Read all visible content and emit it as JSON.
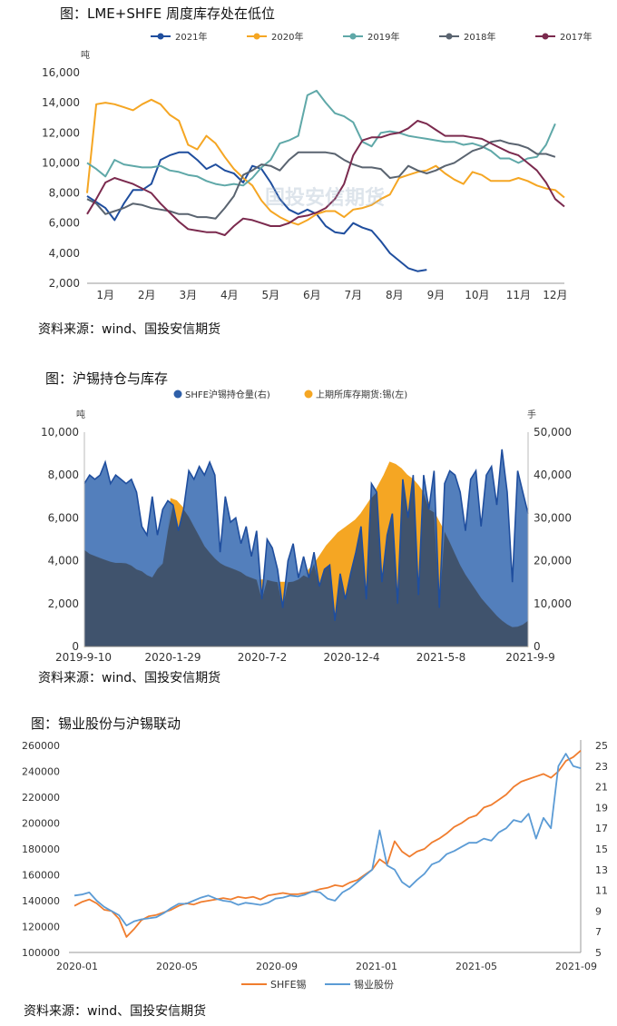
{
  "charts": [
    {
      "figure_title": "图：LME+SHFE 周度库存处在低位",
      "source": "资料来源：wind、国投安信期货"
    },
    {
      "figure_title": "图：沪锡持仓与库存",
      "source": "资料来源：wind、国投安信期货"
    },
    {
      "figure_title": "图：锡业股份与沪锡联动",
      "source": "资料来源：wind、国投安信期货"
    }
  ],
  "watermark": "国投安信期货",
  "chart_data": [
    {
      "type": "line",
      "title": "图：LME+SHFE 周度库存处在低位",
      "y_unit": "吨",
      "ylim": [
        2000,
        16000
      ],
      "yticks": [
        "2,000",
        "4,000",
        "6,000",
        "8,000",
        "10,000",
        "12,000",
        "14,000",
        "16,000"
      ],
      "xlim": [
        1,
        53
      ],
      "x_ticks": [
        {
          "label": "1月",
          "week": 3
        },
        {
          "label": "2月",
          "week": 7.5
        },
        {
          "label": "3月",
          "week": 12
        },
        {
          "label": "4月",
          "week": 16.5
        },
        {
          "label": "5月",
          "week": 21
        },
        {
          "label": "6月",
          "week": 25.5
        },
        {
          "label": "7月",
          "week": 30
        },
        {
          "label": "8月",
          "week": 34.5
        },
        {
          "label": "9月",
          "week": 39
        },
        {
          "label": "10月",
          "week": 43.5
        },
        {
          "label": "11月",
          "week": 48
        },
        {
          "label": "12月",
          "week": 52
        }
      ],
      "legend_position": "top",
      "series": [
        {
          "name": "2021年",
          "color": "#1f4e9e",
          "values": [
            7800,
            7400,
            7000,
            6200,
            7300,
            8200,
            8200,
            8600,
            10200,
            10500,
            10700,
            10700,
            10200,
            9600,
            9900,
            9500,
            9300,
            8700,
            9800,
            9600,
            8700,
            7600,
            6900,
            6600,
            6900,
            6600,
            5800,
            5400,
            5300,
            6000,
            5700,
            5500,
            4800,
            4000,
            3500,
            3000,
            2800,
            2900
          ]
        },
        {
          "name": "2020年",
          "color": "#f5a623",
          "values": [
            8000,
            13900,
            14000,
            13900,
            13700,
            13500,
            13900,
            14200,
            13900,
            13200,
            12800,
            11200,
            10900,
            11800,
            11300,
            10400,
            9600,
            9000,
            8500,
            7500,
            6800,
            6400,
            6100,
            5900,
            6200,
            6600,
            6800,
            6800,
            6400,
            6900,
            7000,
            7200,
            7600,
            7900,
            9000,
            9200,
            9400,
            9500,
            9800,
            9300,
            8900,
            8600,
            9400,
            9200,
            8800,
            8800,
            8800,
            9000,
            8800,
            8500,
            8300,
            8200,
            7700
          ]
        },
        {
          "name": "2019年",
          "color": "#5fa8a8",
          "values": [
            10000,
            9600,
            9100,
            10200,
            9900,
            9800,
            9700,
            9700,
            9800,
            9500,
            9400,
            9200,
            9100,
            8800,
            8600,
            8500,
            8600,
            8500,
            9000,
            9700,
            10200,
            11300,
            11500,
            11800,
            14500,
            14800,
            14000,
            13300,
            13100,
            12700,
            11400,
            11100,
            12000,
            12100,
            12000,
            11800,
            11700,
            11600,
            11500,
            11400,
            11400,
            11200,
            11300,
            11100,
            10800,
            10300,
            10300,
            10000,
            10300,
            10400,
            11200,
            12600
          ]
        },
        {
          "name": "2018年",
          "color": "#5a6470",
          "values": [
            7600,
            7300,
            6600,
            6800,
            7000,
            7300,
            7200,
            7000,
            6900,
            6800,
            6600,
            6600,
            6400,
            6400,
            6300,
            7000,
            7800,
            9200,
            9500,
            9900,
            9800,
            9500,
            10200,
            10700,
            10700,
            10700,
            10700,
            10600,
            10200,
            9900,
            9700,
            9700,
            9600,
            9000,
            9100,
            9800,
            9500,
            9300,
            9500,
            9800,
            10000,
            10400,
            10800,
            11000,
            11400,
            11500,
            11300,
            11200,
            11000,
            10600,
            10600,
            10400
          ]
        },
        {
          "name": "2017年",
          "color": "#7b2a4e",
          "values": [
            6600,
            7600,
            8700,
            9000,
            8800,
            8600,
            8300,
            8000,
            7300,
            6700,
            6100,
            5600,
            5500,
            5400,
            5400,
            5200,
            5800,
            6300,
            6200,
            6000,
            5800,
            5800,
            6000,
            6400,
            6500,
            6700,
            7000,
            7600,
            8600,
            10500,
            11500,
            11700,
            11700,
            11900,
            12000,
            12300,
            12800,
            12600,
            12200,
            11800,
            11800,
            11800,
            11700,
            11600,
            11300,
            11000,
            10700,
            10500,
            10000,
            9500,
            8700,
            7600,
            7100
          ]
        }
      ]
    },
    {
      "type": "area",
      "title": "图：沪锡持仓与库存",
      "y_left_unit": "吨",
      "y_right_unit": "手",
      "ylim_left": [
        0,
        10000
      ],
      "ylim_right": [
        0,
        50000
      ],
      "yticks_left": [
        "0",
        "2,000",
        "4,000",
        "6,000",
        "8,000",
        "10,000"
      ],
      "yticks_right": [
        "0",
        "10,000",
        "20,000",
        "30,000",
        "40,000",
        "50,000"
      ],
      "x_tick_labels": [
        "2019-9-10",
        "2020-1-29",
        "2020-7-2",
        "2020-12-4",
        "2021-5-8",
        "2021-9-9"
      ],
      "legend_position": "top",
      "series": [
        {
          "name": "SHFE沪锡持仓量(右)",
          "color": "#2e5fa8",
          "values": [
            38000,
            40000,
            39000,
            40000,
            43000,
            38000,
            40000,
            39000,
            38000,
            39000,
            36000,
            28000,
            26000,
            35000,
            26000,
            32000,
            34000,
            33000,
            27000,
            32000,
            41000,
            39000,
            42000,
            40000,
            43000,
            40000,
            22000,
            35000,
            29000,
            30000,
            24000,
            28000,
            21000,
            27000,
            11000,
            25000,
            23000,
            18000,
            9000,
            20000,
            24000,
            16000,
            21000,
            16000,
            22000,
            14000,
            18000,
            19000,
            6000,
            17000,
            11000,
            17000,
            22000,
            28000,
            11000,
            38000,
            36000,
            15000,
            26000,
            31000,
            10000,
            39000,
            30000,
            40000,
            12000,
            40000,
            32000,
            41000,
            9000,
            38000,
            41000,
            40000,
            36000,
            27000,
            39000,
            41000,
            28000,
            40000,
            42000,
            33000,
            46000,
            36000,
            15000,
            41000,
            36000,
            31000
          ]
        },
        {
          "name": "上期所库存期货:锡(左)",
          "color": "#f5a623",
          "values": [
            4500,
            4300,
            4200,
            4100,
            4000,
            3900,
            3900,
            3900,
            3800,
            3600,
            3500,
            3300,
            3200,
            3800,
            3900,
            6900,
            6800,
            6500,
            6100,
            5600,
            5100,
            4600,
            4300,
            4000,
            3800,
            3700,
            3600,
            3500,
            3300,
            3200,
            3100,
            3100,
            3100,
            3000,
            3000,
            3000,
            3000,
            3100,
            3300,
            3600,
            3900,
            4300,
            4700,
            5000,
            5300,
            5500,
            5700,
            5900,
            6200,
            6600,
            7000,
            7500,
            8000,
            8600,
            8500,
            8300,
            8000,
            7800,
            7500,
            7100,
            6600,
            6100,
            5600,
            5100,
            4500,
            3900,
            3400,
            3000,
            2600,
            2200,
            1900,
            1600,
            1300,
            1100,
            900,
            900,
            1000,
            1200
          ]
        }
      ]
    },
    {
      "type": "line",
      "title": "图：锡业股份与沪锡联动",
      "ylim_left": [
        100000,
        260000
      ],
      "ylim_right": [
        5,
        25
      ],
      "yticks_left": [
        "100000",
        "120000",
        "140000",
        "160000",
        "180000",
        "200000",
        "220000",
        "240000",
        "260000"
      ],
      "yticks_right": [
        "5",
        "7",
        "9",
        "11",
        "13",
        "15",
        "17",
        "19",
        "21",
        "23",
        "25"
      ],
      "x_tick_labels": [
        "2020-01",
        "2020-05",
        "2020-09",
        "2021-01",
        "2021-05",
        "2021-09"
      ],
      "legend_position": "bottom",
      "series": [
        {
          "name": "SHFE锡",
          "color": "#f07d2e",
          "values": [
            136000,
            139000,
            141000,
            138000,
            133000,
            132000,
            126000,
            112000,
            118000,
            125000,
            128000,
            129000,
            131000,
            133000,
            136000,
            138000,
            137000,
            139000,
            140000,
            141000,
            142000,
            141000,
            143000,
            142000,
            143000,
            141000,
            144000,
            145000,
            146000,
            145000,
            145000,
            146000,
            147000,
            149000,
            150000,
            152000,
            151000,
            154000,
            156000,
            160000,
            164000,
            172000,
            168000,
            186000,
            178000,
            174000,
            178000,
            180000,
            185000,
            188000,
            192000,
            197000,
            200000,
            204000,
            206000,
            212000,
            214000,
            218000,
            222000,
            228000,
            232000,
            234000,
            236000,
            238000,
            235000,
            240000,
            248000,
            251000,
            256000
          ]
        },
        {
          "name": "锡业股份",
          "color": "#5b9bd5",
          "values": [
            10.5,
            10.6,
            10.8,
            10.0,
            9.4,
            9.0,
            8.6,
            7.6,
            8.0,
            8.2,
            8.3,
            8.4,
            8.8,
            9.3,
            9.7,
            9.7,
            10.0,
            10.3,
            10.5,
            10.2,
            10.0,
            9.9,
            9.6,
            9.8,
            9.7,
            9.6,
            9.8,
            10.2,
            10.3,
            10.5,
            10.4,
            10.6,
            10.9,
            10.8,
            10.2,
            10.0,
            10.8,
            11.2,
            11.8,
            12.4,
            13.0,
            16.8,
            13.4,
            13.0,
            11.8,
            11.3,
            12.0,
            12.6,
            13.5,
            13.8,
            14.5,
            14.8,
            15.2,
            15.6,
            15.6,
            16.0,
            15.8,
            16.6,
            17.0,
            17.8,
            17.6,
            18.4,
            16.0,
            18.0,
            17.0,
            23.0,
            24.2,
            23.0,
            22.8
          ]
        }
      ]
    }
  ]
}
